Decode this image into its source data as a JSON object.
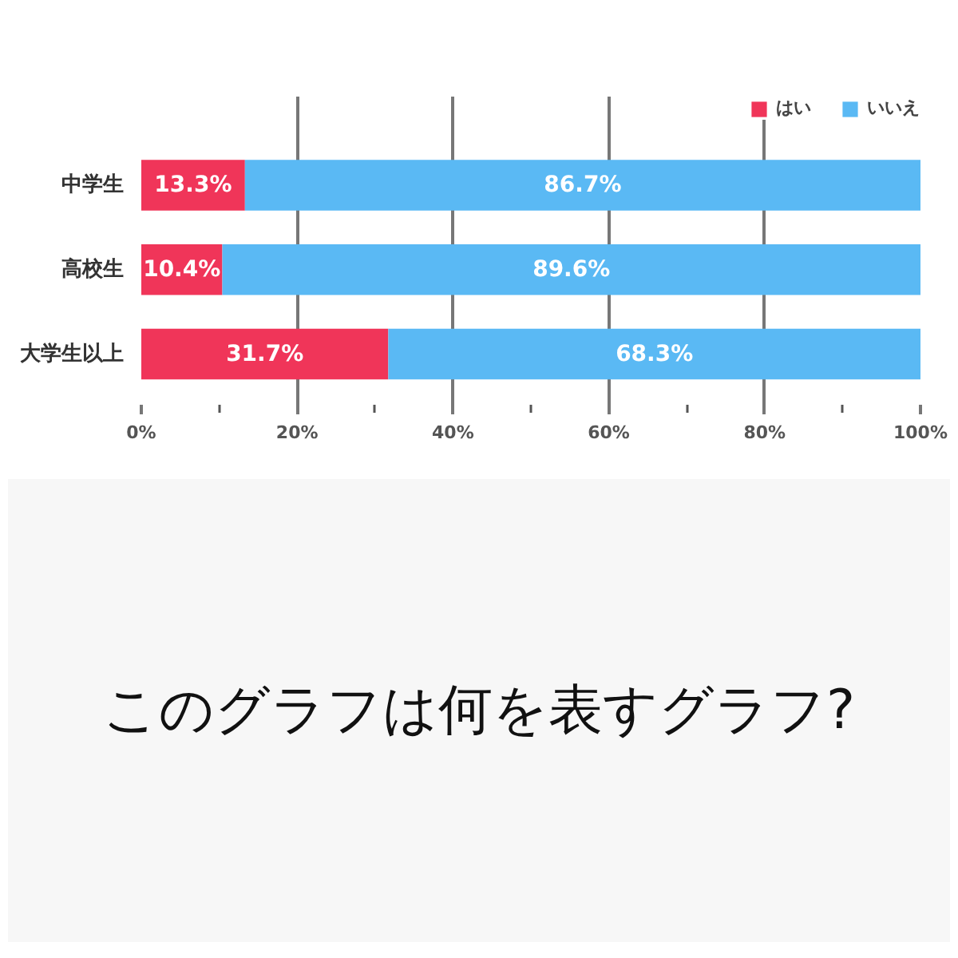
{
  "chart_data": {
    "type": "bar",
    "orientation": "horizontal",
    "stacked": true,
    "categories": [
      "中学生",
      "高校生",
      "大学生以上"
    ],
    "series": [
      {
        "name": "はい",
        "color": "#f03559",
        "values": [
          13.3,
          10.4,
          31.7
        ],
        "value_labels": [
          "13.3%",
          "10.4%",
          "31.7%"
        ]
      },
      {
        "name": "いいえ",
        "color": "#5ab9f4",
        "values": [
          86.7,
          89.6,
          68.3
        ],
        "value_labels": [
          "86.7%",
          "89.6%",
          "68.3%"
        ]
      }
    ],
    "xlim": [
      0,
      100
    ],
    "xticks": [
      {
        "value": 0,
        "label": "0%"
      },
      {
        "value": 10,
        "label": null
      },
      {
        "value": 20,
        "label": "20%"
      },
      {
        "value": 30,
        "label": null
      },
      {
        "value": 40,
        "label": "40%"
      },
      {
        "value": 50,
        "label": null
      },
      {
        "value": 60,
        "label": "60%"
      },
      {
        "value": 70,
        "label": null
      },
      {
        "value": 80,
        "label": "80%"
      },
      {
        "value": 90,
        "label": null
      },
      {
        "value": 100,
        "label": "100%"
      }
    ],
    "grid": "x",
    "legend": "top right",
    "annotations": [
      "このグラフは何を表すグラフ?"
    ]
  }
}
